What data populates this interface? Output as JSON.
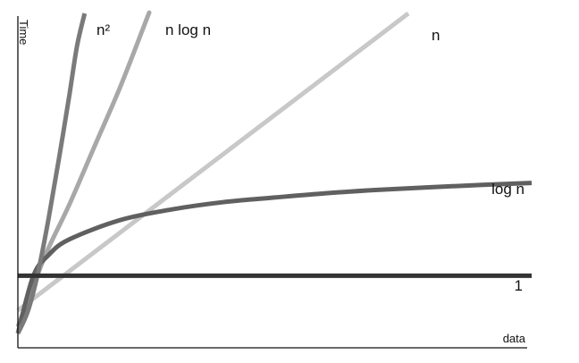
{
  "chart_data": {
    "type": "line",
    "xlabel": "data",
    "ylabel": "Time",
    "grid": false,
    "legend": "inline labels at line ends",
    "series": [
      {
        "name": "1",
        "color": "#333333",
        "points": [
          [
            0.0,
            20.5
          ],
          [
            10.0,
            20.5
          ]
        ]
      },
      {
        "name": "log n",
        "color": "#606060",
        "points": [
          [
            0.0,
            3.0
          ],
          [
            0.3,
            20.4
          ],
          [
            0.6,
            26.8
          ],
          [
            1.0,
            31.5
          ],
          [
            2.0,
            37.4
          ],
          [
            3.0,
            40.6
          ],
          [
            4.0,
            42.8
          ],
          [
            5.0,
            44.2
          ],
          [
            6.0,
            45.5
          ],
          [
            7.0,
            46.5
          ],
          [
            8.0,
            47.3
          ],
          [
            9.0,
            48.0
          ],
          [
            10.0,
            48.6
          ]
        ]
      },
      {
        "name": "n",
        "color": "#c8c8c8",
        "points": [
          [
            0.0,
            10.0
          ],
          [
            7.6,
            100.0
          ]
        ]
      },
      {
        "name": "n log n",
        "color": "#a8a8a8",
        "points": [
          [
            0.0,
            5.0
          ],
          [
            0.3,
            17.5
          ],
          [
            0.6,
            29.0
          ],
          [
            1.0,
            42.0
          ],
          [
            1.5,
            60.0
          ],
          [
            2.0,
            78.0
          ],
          [
            2.5,
            98.0
          ],
          [
            2.55,
            100.0
          ]
        ]
      },
      {
        "name": "n²",
        "color": "#7a7a7a",
        "points": [
          [
            0.0,
            3.0
          ],
          [
            0.2,
            10.0
          ],
          [
            0.4,
            22.0
          ],
          [
            0.6,
            38.0
          ],
          [
            0.8,
            56.0
          ],
          [
            1.0,
            75.0
          ],
          [
            1.15,
            90.0
          ],
          [
            1.3,
            100.0
          ]
        ]
      }
    ],
    "xlim": [
      0,
      10
    ],
    "ylim": [
      0,
      100
    ]
  }
}
